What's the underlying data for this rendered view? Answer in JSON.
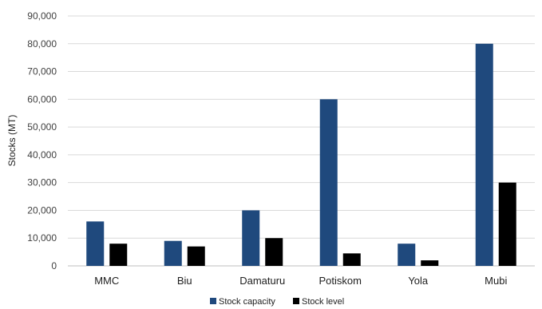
{
  "chart_data": {
    "type": "bar",
    "title": "",
    "xlabel": "",
    "ylabel": "Stocks (MT)",
    "categories": [
      "MMC",
      "Biu",
      "Damaturu",
      "Potiskom",
      "Yola",
      "Mubi"
    ],
    "series": [
      {
        "name": "Stock capacity",
        "color": "#1F497D",
        "values": [
          16000,
          9000,
          20000,
          60000,
          8000,
          80000
        ]
      },
      {
        "name": "Stock level",
        "color": "#000000",
        "values": [
          8000,
          7000,
          10000,
          4500,
          2000,
          30000
        ]
      }
    ],
    "ylim": [
      0,
      90000
    ],
    "yticks": [
      "0",
      "10,000",
      "20,000",
      "30,000",
      "40,000",
      "50,000",
      "60,000",
      "70,000",
      "80,000",
      "90,000"
    ],
    "ytick_values": [
      0,
      10000,
      20000,
      30000,
      40000,
      50000,
      60000,
      70000,
      80000,
      90000
    ],
    "grid": true,
    "legend_position": "bottom"
  }
}
